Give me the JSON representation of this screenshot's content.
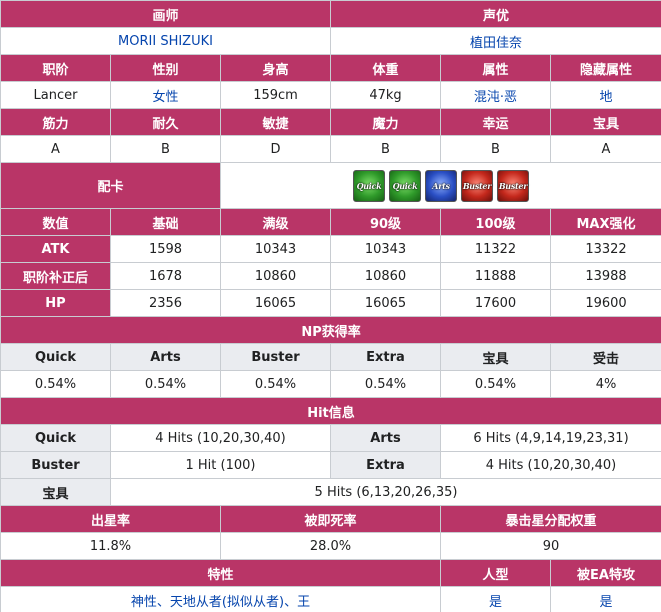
{
  "illustrator": {
    "label": "画师",
    "value": "MORII SHIZUKI"
  },
  "voice_actor": {
    "label": "声优",
    "value": "植田佳奈"
  },
  "profile": {
    "headers": [
      "职阶",
      "性别",
      "身高",
      "体重",
      "属性",
      "隐藏属性"
    ],
    "values": [
      "Lancer",
      "女性",
      "159cm",
      "47kg",
      "混沌·恶",
      "地"
    ]
  },
  "params": {
    "headers": [
      "筋力",
      "耐久",
      "敏捷",
      "魔力",
      "幸运",
      "宝具"
    ],
    "values": [
      "A",
      "B",
      "D",
      "B",
      "B",
      "A"
    ]
  },
  "deck": {
    "label": "配卡",
    "cards": [
      {
        "type": "quick",
        "text": "Quick",
        "icon": "quick-card-icon"
      },
      {
        "type": "quick",
        "text": "Quick",
        "icon": "quick-card-icon"
      },
      {
        "type": "arts",
        "text": "Arts",
        "icon": "arts-card-icon"
      },
      {
        "type": "buster",
        "text": "Buster",
        "icon": "buster-card-icon"
      },
      {
        "type": "buster",
        "text": "Buster",
        "icon": "buster-card-icon"
      }
    ]
  },
  "stats": {
    "headers": [
      "数值",
      "基础",
      "满级",
      "90级",
      "100级",
      "MAX强化"
    ],
    "rows": [
      {
        "label": "ATK",
        "values": [
          "1598",
          "10343",
          "10343",
          "11322",
          "13322"
        ]
      },
      {
        "label": "职阶补正后",
        "values": [
          "1678",
          "10860",
          "10860",
          "11888",
          "13988"
        ]
      },
      {
        "label": "HP",
        "values": [
          "2356",
          "16065",
          "16065",
          "17600",
          "19600"
        ]
      }
    ]
  },
  "np": {
    "title": "NP获得率",
    "headers": [
      "Quick",
      "Arts",
      "Buster",
      "Extra",
      "宝具",
      "受击"
    ],
    "values": [
      "0.54%",
      "0.54%",
      "0.54%",
      "0.54%",
      "0.54%",
      "4%"
    ]
  },
  "hits": {
    "title": "Hit信息",
    "quick": {
      "label": "Quick",
      "value": "4 Hits (10,20,30,40)"
    },
    "arts": {
      "label": "Arts",
      "value": "6 Hits (4,9,14,19,23,31)"
    },
    "buster": {
      "label": "Buster",
      "value": "1 Hit (100)"
    },
    "extra": {
      "label": "Extra",
      "value": "4 Hits (10,20,30,40)"
    },
    "np": {
      "label": "宝具",
      "value": "5 Hits (6,13,20,26,35)"
    }
  },
  "star": {
    "headers": [
      "出星率",
      "被即死率",
      "暴击星分配权重"
    ],
    "values": [
      "11.8%",
      "28.0%",
      "90"
    ]
  },
  "traits": {
    "headers": [
      "特性",
      "人型",
      "被EA特攻"
    ],
    "values": [
      "神性、天地从者(拟似从者)、王",
      "是",
      "是"
    ]
  },
  "colors": {
    "header": "#b93567",
    "subheader": "#eaecf0",
    "link": "#0645ad",
    "border": "#c8ccd1"
  }
}
